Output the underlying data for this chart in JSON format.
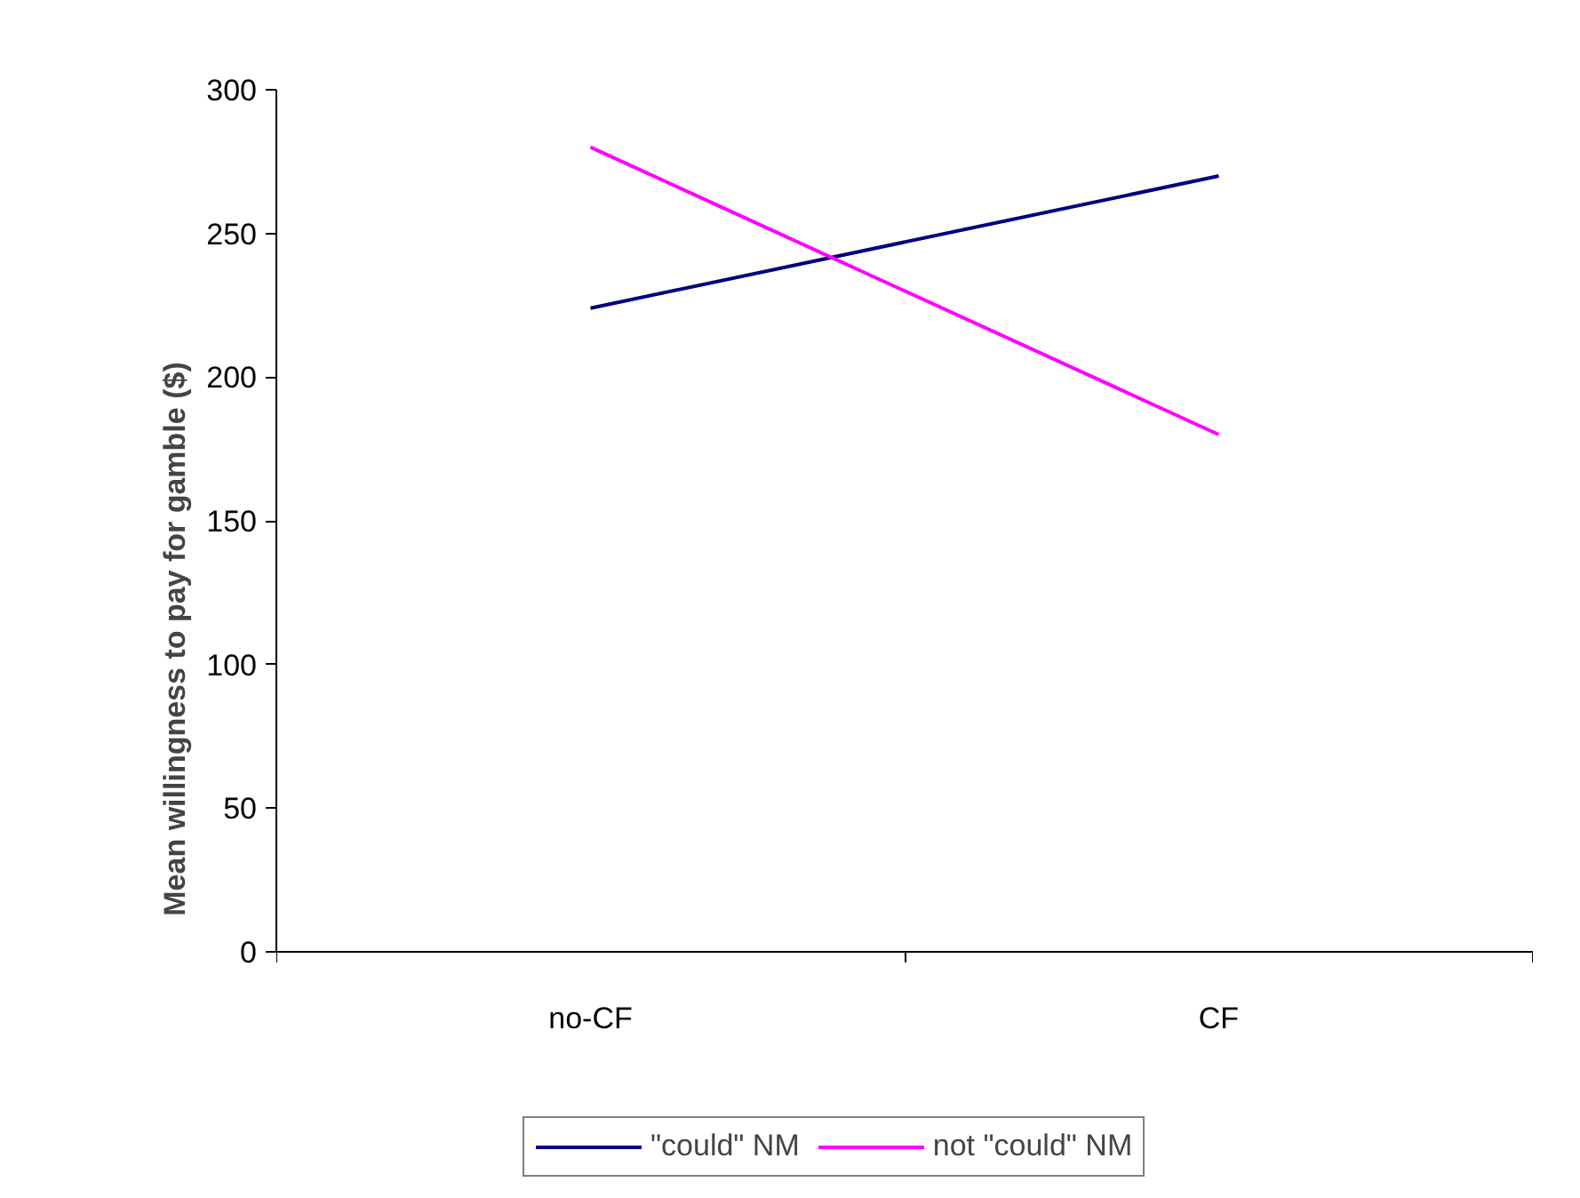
{
  "chart_data": {
    "type": "line",
    "ylabel": "Mean willingness to pay for gamble ($)",
    "categories": [
      "no-CF",
      "CF"
    ],
    "series": [
      {
        "name": "\"could\" NM",
        "color": "#000080",
        "values": [
          224,
          270
        ]
      },
      {
        "name": "not \"could\" NM",
        "color": "#ff00ff",
        "values": [
          280,
          180
        ]
      }
    ],
    "ylim": [
      0,
      300
    ],
    "yticks": [
      0,
      50,
      100,
      150,
      200,
      250,
      300
    ],
    "grid": false,
    "legend": "bottom",
    "marker": "none",
    "line_style": "solid"
  }
}
